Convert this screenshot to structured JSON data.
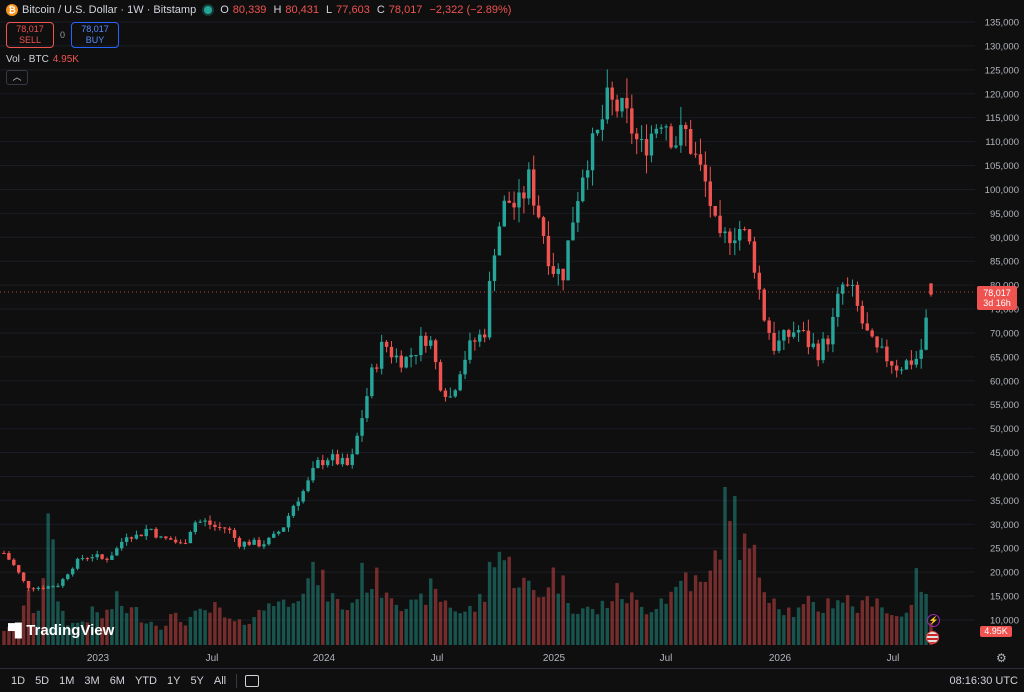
{
  "header": {
    "symbol_title": "Bitcoin / U.S. Dollar · 1W · Bitstamp",
    "open_label": "O",
    "open": "80,339",
    "high_label": "H",
    "high": "80,431",
    "low_label": "L",
    "low": "77,603",
    "close_label": "C",
    "close": "78,017",
    "change": "−2,322 (−2.89%)"
  },
  "trade": {
    "sell_price": "78,017",
    "sell_label": "SELL",
    "spread": "0",
    "buy_price": "78,017",
    "buy_label": "BUY"
  },
  "volume_label": {
    "name": "Vol · BTC",
    "value": "4.95K"
  },
  "collapse_icon": "chevron-up-icon",
  "logo_text": "TradingView",
  "last_price_tag": {
    "price": "78,017",
    "countdown": "3d 16h"
  },
  "volume_tag": "4.95K",
  "timeframes": [
    "1D",
    "5D",
    "1M",
    "3M",
    "6M",
    "YTD",
    "1Y",
    "5Y",
    "All"
  ],
  "clock": "08:16:30 UTC",
  "colors": {
    "up": "#26a69a",
    "down": "#ef5350",
    "background": "#0f0f0f"
  },
  "chart_data": {
    "type": "candlestick",
    "y_axis_ticks": [
      10000,
      15000,
      20000,
      25000,
      30000,
      35000,
      40000,
      45000,
      50000,
      55000,
      60000,
      65000,
      70000,
      75000,
      80000,
      85000,
      90000,
      95000,
      100000,
      105000,
      110000,
      115000,
      120000,
      125000,
      130000,
      135000
    ],
    "y_tick_labels": [
      "10,000",
      "15,000",
      "20,000",
      "25,000",
      "30,000",
      "35,000",
      "40,000",
      "45,000",
      "50,000",
      "55,000",
      "60,000",
      "65,000",
      "70,000",
      "75,000",
      "80,000",
      "85,000",
      "90,000",
      "95,000",
      "100,000",
      "105,000",
      "110,000",
      "115,000",
      "120,000",
      "125,000",
      "130,000",
      "135,000"
    ],
    "x_tick_labels": [
      "2023",
      "Jul",
      "2024",
      "Jul",
      "2025",
      "Jul",
      "2026",
      "Jul"
    ],
    "ylim": [
      10000,
      135000
    ],
    "close_trend": [
      24000,
      21000,
      17000,
      16800,
      17000,
      17500,
      21000,
      23000,
      23500,
      22500,
      24500,
      28000,
      27500,
      29500,
      27000,
      26800,
      25500,
      30500,
      30500,
      29300,
      29200,
      26000,
      26200,
      25800,
      27000,
      29500,
      34500,
      37500,
      42500,
      44000,
      43000,
      42000,
      52000,
      62000,
      68000,
      65000,
      64500,
      67000,
      70000,
      60000,
      56500,
      64000,
      68000,
      70000,
      90000,
      98000,
      96000,
      102000,
      94000,
      84000,
      82000,
      95000,
      106000,
      110000,
      118000,
      117000,
      114000,
      108000,
      112000,
      116000,
      110000,
      112000,
      106000,
      100000,
      88000,
      91000,
      92000,
      87000,
      74000,
      67000,
      69000,
      71000,
      68000,
      66000,
      70000,
      80000,
      78000,
      71000,
      66000,
      65000,
      63000,
      64000,
      65000,
      78000
    ],
    "volume_trend": [
      4000,
      3500,
      12000,
      8000,
      30000,
      9000,
      5000,
      6000,
      8000,
      7000,
      11000,
      9000,
      8000,
      6000,
      5000,
      7000,
      6000,
      7000,
      8000,
      9000,
      6000,
      5000,
      7000,
      8000,
      12000,
      10000,
      14000,
      15000,
      18000,
      13000,
      10000,
      9000,
      17000,
      16000,
      15000,
      13000,
      10000,
      9000,
      14000,
      12000,
      10000,
      8000,
      9000,
      12000,
      26000,
      20000,
      17000,
      14000,
      12000,
      18000,
      15000,
      10000,
      9000,
      8000,
      11000,
      13000,
      12000,
      9000,
      10000,
      12000,
      13000,
      18000,
      15000,
      14000,
      26000,
      38000,
      25000,
      22000,
      16000,
      12000,
      9000,
      8000,
      10000,
      9000,
      11000,
      12000,
      10000,
      9000,
      14000,
      8000,
      7000,
      10000,
      18000,
      5000
    ],
    "ytd_candles_count": 190
  }
}
